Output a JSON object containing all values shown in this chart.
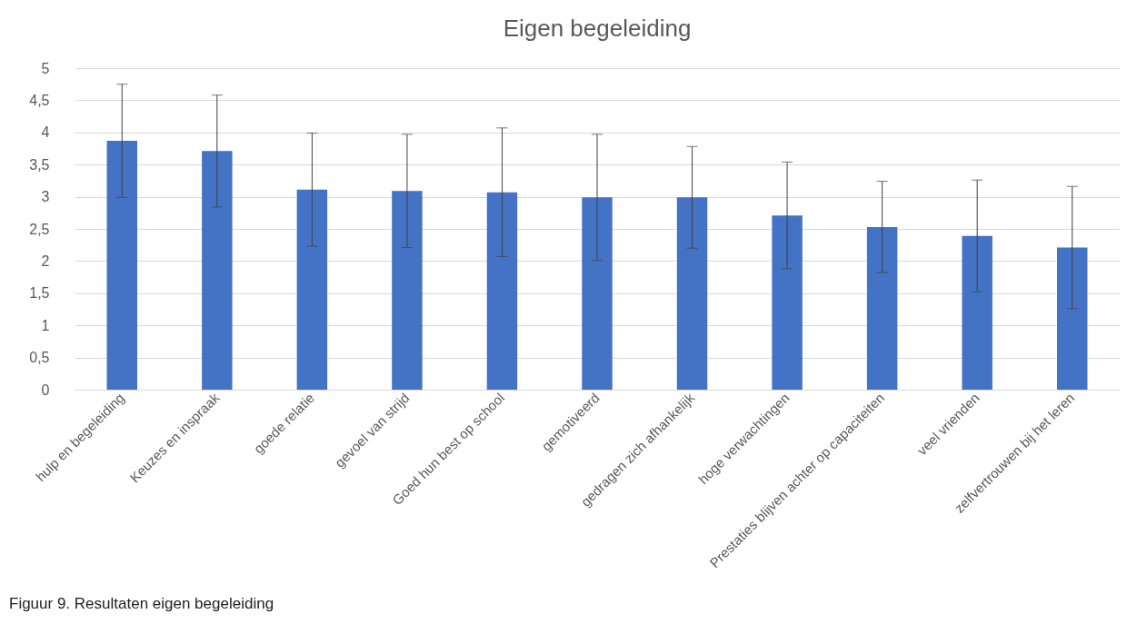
{
  "chart_data": {
    "type": "bar",
    "title": "Eigen begeleiding",
    "categories": [
      "hulp en begeleiding",
      "Keuzes en inspraak",
      "goede relatie",
      "gevoel van strijd",
      "Goed hun best op school",
      "gemotiveerd",
      "gedragen zich afhankelijk",
      "hoge verwachtingen",
      "Prestaties blijven achter op capaciteiten",
      "veel vrienden",
      "zelfvertrouwen bij het leren"
    ],
    "values": [
      3.87,
      3.71,
      3.11,
      3.09,
      3.07,
      2.99,
      2.99,
      2.71,
      2.53,
      2.39,
      2.21
    ],
    "errors": [
      0.88,
      0.87,
      0.88,
      0.88,
      1.0,
      0.98,
      0.79,
      0.83,
      0.71,
      0.87,
      0.95
    ],
    "color": "#4472c4",
    "ylim": [
      0,
      5
    ],
    "yticks": [
      0,
      {
        "value": 0.5,
        "label": "0,5"
      },
      1,
      {
        "value": 1.5,
        "label": "1,5"
      },
      2,
      {
        "value": 2.5,
        "label": "2,5"
      },
      3,
      {
        "value": 3.5,
        "label": "3,5"
      },
      4,
      {
        "value": 4.5,
        "label": "4,5"
      },
      5
    ],
    "grid": "y",
    "annotations": [
      "Figuur 9. Resultaten eigen begeleiding"
    ]
  }
}
